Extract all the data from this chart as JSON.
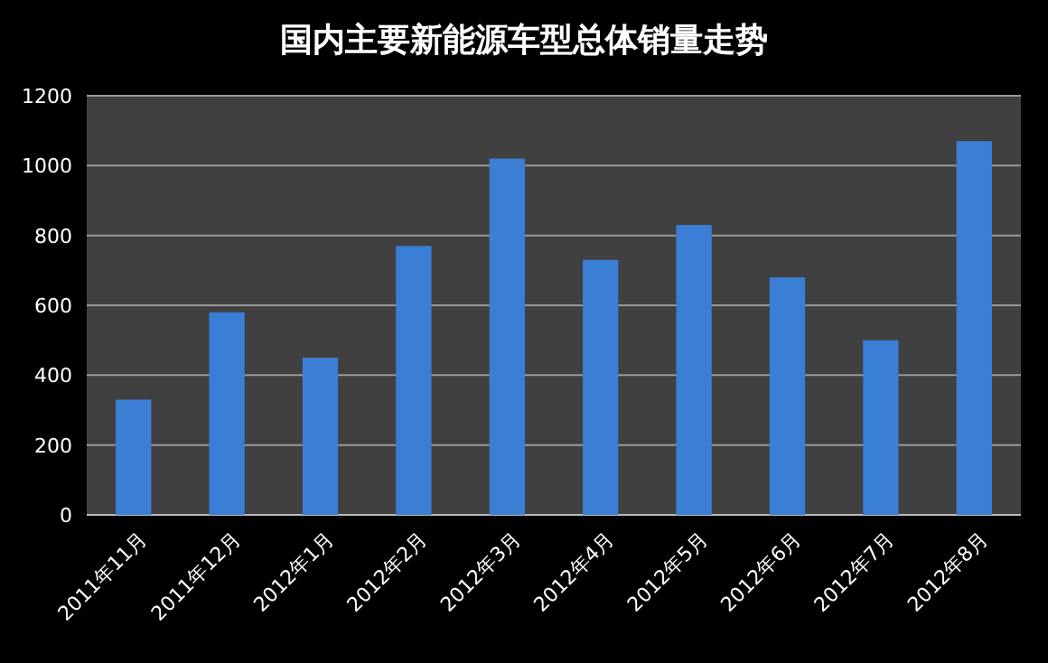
{
  "chart_data": {
    "type": "bar",
    "title": "国内主要新能源车型总体销量走势",
    "categories": [
      "2011年11月",
      "2011年12月",
      "2012年1月",
      "2012年2月",
      "2012年3月",
      "2012年4月",
      "2012年5月",
      "2012年6月",
      "2012年7月",
      "2012年8月"
    ],
    "values": [
      330,
      580,
      450,
      770,
      1020,
      730,
      830,
      680,
      500,
      1070
    ],
    "color": "#3a7fd5",
    "ylim": [
      0,
      1200
    ],
    "yticks": [
      0,
      200,
      400,
      600,
      800,
      1000,
      1200
    ],
    "grid": "y"
  }
}
